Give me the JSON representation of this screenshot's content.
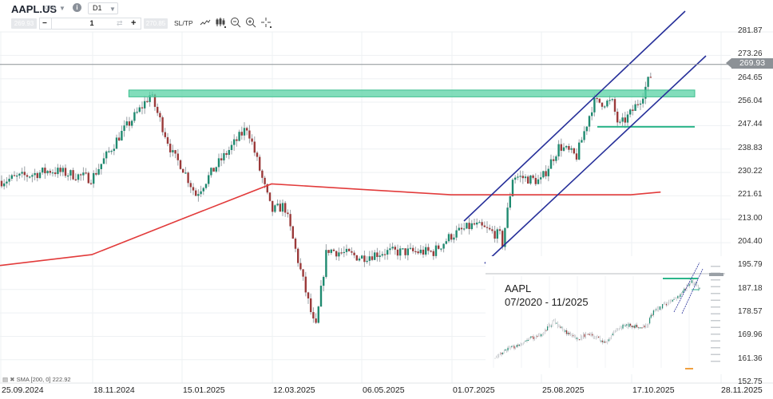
{
  "header": {
    "symbol": "AAPL.US",
    "instrument_type": "CFD",
    "timeframe": "D1",
    "sell_price": "269.93",
    "quantity": "1",
    "buy_price": "270.85",
    "sltp_label": "SL/TP",
    "icons": [
      "info-icon",
      "minus-icon",
      "swap-icon",
      "plus-icon",
      "line-chart-icon",
      "candles-icon",
      "zoom-out-icon",
      "zoom-in-icon",
      "crosshair-icon"
    ]
  },
  "indicator": {
    "label": "SMA [200, 0] 222.92"
  },
  "current_price": "269.93",
  "colors": {
    "bull": "#1f8a70",
    "bear": "#9b3a3a",
    "wick": "#9aa0a6",
    "sma": "#e23b3b",
    "channel": "#27309a",
    "resistance_zone": "#58d1a4",
    "support_line": "#2bb58a",
    "price_line": "#9aa0a6",
    "grid": "#eef1f3"
  },
  "chart_data": {
    "type": "candlestick",
    "title": "AAPL.US CFD D1",
    "xlabel": "",
    "ylabel": "Price",
    "ylim": [
      152.75,
      290.0
    ],
    "y_ticks": [
      "281.87",
      "273.26",
      "264.65",
      "256.04",
      "247.44",
      "238.83",
      "230.22",
      "221.61",
      "213.00",
      "204.40",
      "195.79",
      "187.18",
      "178.57",
      "169.96",
      "161.36",
      "152.75"
    ],
    "x_ticks": [
      "25.09.2024",
      "18.11.2024",
      "15.01.2025",
      "12.03.2025",
      "06.05.2025",
      "01.07.2025",
      "25.08.2025",
      "17.10.2025",
      "28.11.2025"
    ],
    "grid": true,
    "legend": "SMA [200, 0] 222.92 (bottom-left)",
    "series": [
      {
        "name": "AAPL.US close (approx.)",
        "points": [
          [
            "25.09.2024",
            227
          ],
          [
            "10.10.2024",
            229
          ],
          [
            "25.10.2024",
            231
          ],
          [
            "18.11.2024",
            228
          ],
          [
            "05.12.2024",
            243
          ],
          [
            "20.12.2024",
            254
          ],
          [
            "26.12.2024",
            259
          ],
          [
            "10.01.2025",
            236
          ],
          [
            "15.01.2025",
            233
          ],
          [
            "24.01.2025",
            222
          ],
          [
            "05.02.2025",
            232
          ],
          [
            "25.02.2025",
            247
          ],
          [
            "12.03.2025",
            216
          ],
          [
            "20.03.2025",
            218
          ],
          [
            "08.04.2025",
            172
          ],
          [
            "15.04.2025",
            202
          ],
          [
            "06.05.2025",
            199
          ],
          [
            "20.05.2025",
            201
          ],
          [
            "01.06.2025",
            201
          ],
          [
            "20.06.2025",
            201
          ],
          [
            "01.07.2025",
            207
          ],
          [
            "15.07.2025",
            211
          ],
          [
            "31.07.2025",
            207
          ],
          [
            "01.08.2025",
            202
          ],
          [
            "08.08.2025",
            229
          ],
          [
            "25.08.2025",
            227
          ],
          [
            "05.09.2025",
            240
          ],
          [
            "15.09.2025",
            236
          ],
          [
            "25.09.2025",
            256
          ],
          [
            "06.10.2025",
            256
          ],
          [
            "10.10.2025",
            247
          ],
          [
            "17.10.2025",
            252
          ],
          [
            "22.10.2025",
            258
          ],
          [
            "28.10.2025",
            269
          ],
          [
            "31.10.2025",
            270
          ]
        ]
      },
      {
        "name": "SMA 200",
        "points": [
          [
            "25.09.2024",
            196
          ],
          [
            "18.11.2024",
            200
          ],
          [
            "15.01.2025",
            213
          ],
          [
            "12.03.2025",
            226
          ],
          [
            "06.05.2025",
            224
          ],
          [
            "01.07.2025",
            222
          ],
          [
            "25.08.2025",
            222
          ],
          [
            "17.10.2025",
            222
          ],
          [
            "31.10.2025",
            223
          ]
        ]
      }
    ],
    "annotations": [
      {
        "type": "resistance_zone",
        "from": 258,
        "to": 260.5,
        "start": "12.12.2024"
      },
      {
        "type": "support_line",
        "price": 247,
        "start": "08.10.2025"
      },
      {
        "type": "rising_channel",
        "upper_start": [
          "01.07.2025",
          214
        ],
        "upper_end": [
          "28.11.2025",
          290
        ],
        "lower_start": [
          "15.07.2025",
          198
        ],
        "lower_end": [
          "28.11.2025",
          272
        ]
      },
      {
        "type": "current_price_line",
        "price": 269.93
      }
    ],
    "inset": {
      "title_line1": "AAPL",
      "title_line2": "07/2020 - 11/2025",
      "type": "candlestick",
      "description": "Long-term AAPL daily chart from 07/2020 to 11/2025 with same resistance zone and channel"
    }
  }
}
